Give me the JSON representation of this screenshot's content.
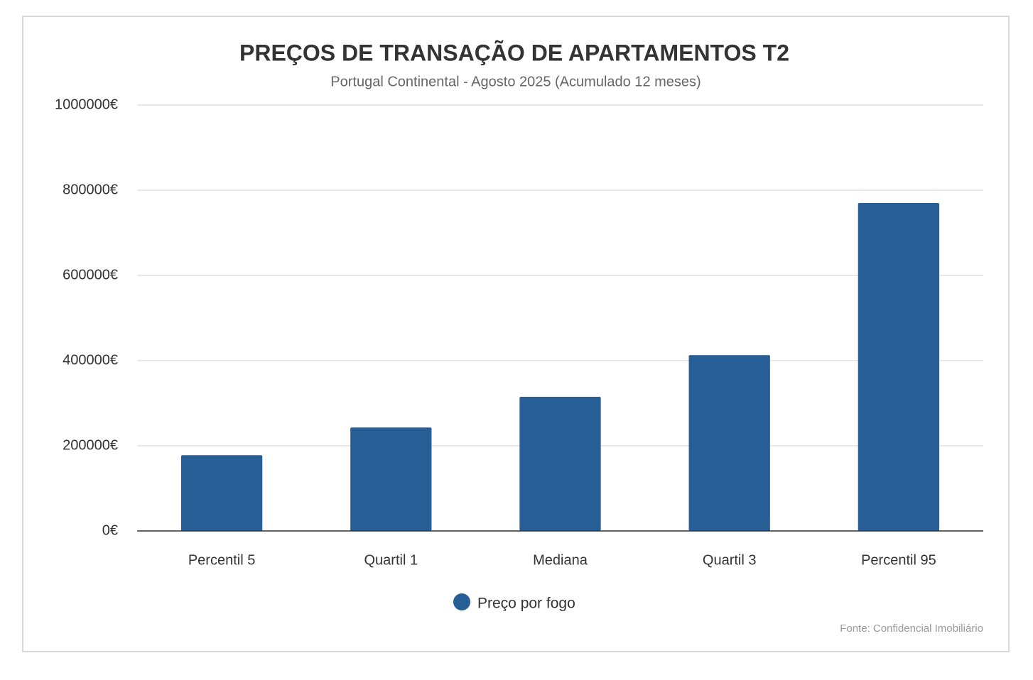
{
  "chart_data": {
    "type": "bar",
    "title": "PREÇOS DE TRANSAÇÃO DE APARTAMENTOS T2",
    "subtitle": "Portugal Continental - Agosto 2025 (Acumulado 12 meses)",
    "categories": [
      "Percentil 5",
      "Quartil 1",
      "Mediana",
      "Quartil 3",
      "Percentil 95"
    ],
    "series": [
      {
        "name": "Preço por fogo",
        "color": "#285e96",
        "values": [
          178000,
          243000,
          315000,
          413000,
          770000
        ]
      }
    ],
    "ylim": [
      0,
      1000000
    ],
    "yticks": [
      {
        "value": 0,
        "label": "0€"
      },
      {
        "value": 200000,
        "label": "200000€"
      },
      {
        "value": 400000,
        "label": "400000€"
      },
      {
        "value": 600000,
        "label": "600000€"
      },
      {
        "value": 800000,
        "label": "800000€"
      },
      {
        "value": 1000000,
        "label": "1000000€"
      }
    ],
    "grid": true,
    "source": "Fonte: Confidencial Imobiliário"
  }
}
